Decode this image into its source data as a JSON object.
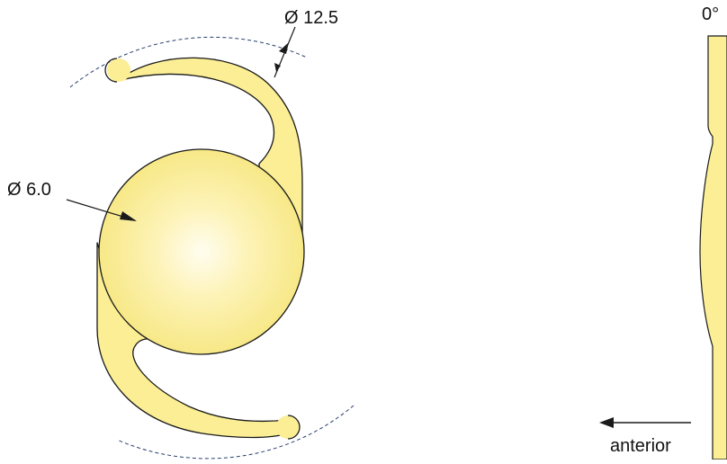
{
  "labels": {
    "overall_diameter": "Ø 12.5",
    "optic_diameter": "Ø 6.0",
    "haptic_angle": "0°",
    "direction": "anterior"
  },
  "colors": {
    "lens_fill": "#FBEE95",
    "lens_highlight": "#FFFDF0",
    "outline": "#1a1a1a",
    "dashed_circle": "#2a3f6e"
  }
}
